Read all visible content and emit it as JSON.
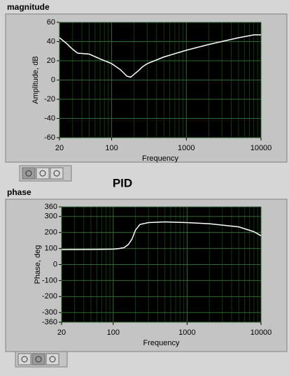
{
  "label": "PID",
  "chart_data": [
    {
      "type": "line",
      "title": "magnitude",
      "xlabel": "Frequency",
      "ylabel": "Amplitude, dB",
      "xscale": "log",
      "grid": true,
      "color": "#ffffff",
      "x": [
        20,
        25,
        30,
        35,
        50,
        70,
        100,
        130,
        160,
        180,
        200,
        230,
        260,
        300,
        500,
        1000,
        2000,
        5000,
        8000,
        10000
      ],
      "values": [
        44,
        38,
        32,
        28,
        27,
        22,
        17,
        11,
        4,
        3,
        6,
        10,
        14,
        17,
        24,
        31,
        37,
        44,
        47,
        47
      ],
      "xlim": [
        20,
        10000
      ],
      "xticks": [
        20,
        100,
        1000,
        10000
      ],
      "ylim": [
        -60,
        60
      ],
      "yticks": [
        60,
        40,
        20,
        0,
        -20,
        -40,
        -60
      ]
    },
    {
      "type": "line",
      "title": "phase",
      "xlabel": "Frequency",
      "ylabel": "Phase, deg",
      "xscale": "log",
      "grid": true,
      "color": "#ffffff",
      "x": [
        20,
        50,
        100,
        120,
        140,
        160,
        180,
        200,
        230,
        300,
        500,
        1000,
        2000,
        5000,
        8000,
        10000
      ],
      "values": [
        93,
        94,
        96,
        100,
        105,
        125,
        160,
        215,
        250,
        262,
        266,
        262,
        255,
        235,
        205,
        180
      ],
      "xlim": [
        20,
        10000
      ],
      "xticks": [
        20,
        100,
        1000,
        10000
      ],
      "ylim": [
        -360,
        360
      ],
      "yticks": [
        360,
        300,
        200,
        100,
        0,
        -100,
        -200,
        -300,
        -360
      ]
    }
  ]
}
